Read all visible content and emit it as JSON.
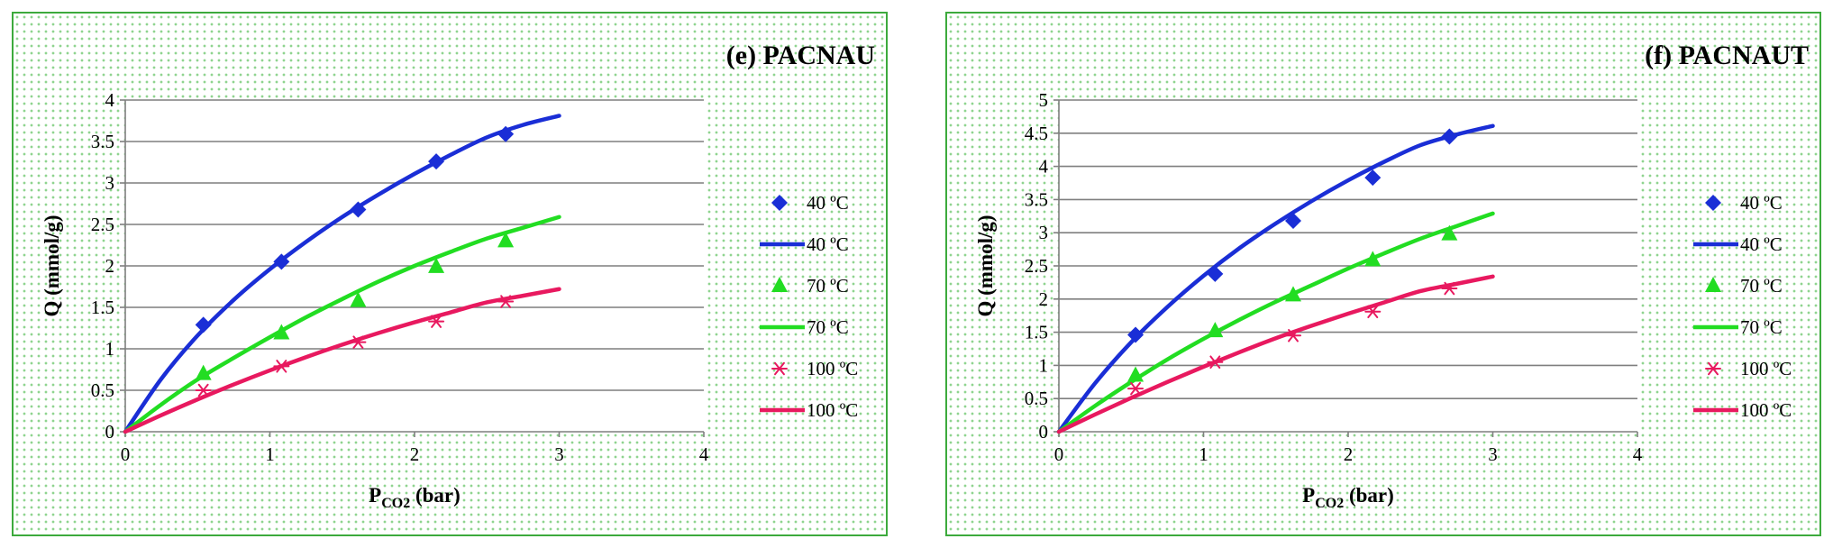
{
  "colors": {
    "c40": "#1a2ed6",
    "c70": "#22dd22",
    "c100": "#e8195f",
    "grid": "#7f7f7f",
    "axis": "#7f7f7f",
    "panel_border": "#3daa3d"
  },
  "chart_data": [
    {
      "type": "scatter",
      "title": "(e) PACNAU",
      "xlabel": {
        "main": "P",
        "sub": "CO2",
        "unit": " (bar)"
      },
      "ylabel": "Q (mmol/g)",
      "xlim": [
        0,
        4
      ],
      "ylim": [
        0,
        4
      ],
      "xticks": [
        0,
        1,
        2,
        3,
        4
      ],
      "yticks": [
        0,
        0.5,
        1,
        1.5,
        2,
        2.5,
        3,
        3.5,
        4
      ],
      "xtick_labels": [
        "0",
        "1",
        "2",
        "3",
        "4"
      ],
      "ytick_labels": [
        "0",
        "0.5",
        "1",
        "1.5",
        "2",
        "2.5",
        "3",
        "3.5",
        "4"
      ],
      "grid": true,
      "legend_position": "right",
      "series": [
        {
          "name": "40 ºC",
          "kind": "marker",
          "marker": "diamond",
          "color": "#1a2ed6",
          "x": [
            0.54,
            1.08,
            1.61,
            2.15,
            2.63
          ],
          "y": [
            1.29,
            2.05,
            2.68,
            3.26,
            3.59
          ]
        },
        {
          "name": "40 ºC",
          "kind": "line",
          "color": "#1a2ed6",
          "x": [
            0,
            0.25,
            0.5,
            0.75,
            1.0,
            1.25,
            1.5,
            1.75,
            2.0,
            2.25,
            2.5,
            2.75,
            3.0
          ],
          "y": [
            0,
            0.64,
            1.16,
            1.59,
            1.96,
            2.29,
            2.59,
            2.86,
            3.11,
            3.34,
            3.55,
            3.7,
            3.81
          ]
        },
        {
          "name": "70 ºC",
          "kind": "marker",
          "marker": "triangle",
          "color": "#22dd22",
          "x": [
            0.54,
            1.08,
            1.61,
            2.15,
            2.63
          ],
          "y": [
            0.7,
            1.19,
            1.58,
            1.99,
            2.3
          ]
        },
        {
          "name": "70 ºC",
          "kind": "line",
          "color": "#22dd22",
          "x": [
            0,
            0.25,
            0.5,
            0.75,
            1.0,
            1.25,
            1.5,
            1.75,
            2.0,
            2.25,
            2.5,
            2.75,
            3.0
          ],
          "y": [
            0,
            0.33,
            0.63,
            0.89,
            1.14,
            1.38,
            1.6,
            1.81,
            2.0,
            2.17,
            2.33,
            2.46,
            2.59
          ]
        },
        {
          "name": "100 ºC",
          "kind": "marker",
          "marker": "asterisk",
          "color": "#e8195f",
          "x": [
            0.54,
            1.08,
            1.61,
            2.15,
            2.63
          ],
          "y": [
            0.5,
            0.79,
            1.08,
            1.33,
            1.57
          ]
        },
        {
          "name": "100 ºC",
          "kind": "line",
          "color": "#e8195f",
          "x": [
            0,
            0.25,
            0.5,
            0.75,
            1.0,
            1.25,
            1.5,
            1.75,
            2.0,
            2.25,
            2.5,
            2.75,
            3.0
          ],
          "y": [
            0,
            0.2,
            0.39,
            0.57,
            0.74,
            0.9,
            1.05,
            1.19,
            1.32,
            1.44,
            1.56,
            1.64,
            1.72
          ]
        }
      ]
    },
    {
      "type": "scatter",
      "title": "(f) PACNAUT",
      "xlabel": {
        "main": "P",
        "sub": "CO2",
        "unit": " (bar)"
      },
      "ylabel": "Q (mmol/g)",
      "xlim": [
        0,
        4
      ],
      "ylim": [
        0,
        5
      ],
      "xticks": [
        0,
        1,
        2,
        3,
        4
      ],
      "yticks": [
        0,
        0.5,
        1,
        1.5,
        2,
        2.5,
        3,
        3.5,
        4,
        4.5,
        5
      ],
      "xtick_labels": [
        "0",
        "1",
        "2",
        "3",
        "4"
      ],
      "ytick_labels": [
        "0",
        "0.5",
        "1",
        "1.5",
        "2",
        "2.5",
        "3",
        "3.5",
        "4",
        "4.5",
        "5"
      ],
      "grid": true,
      "legend_position": "right",
      "series": [
        {
          "name": "40 ºC",
          "kind": "marker",
          "marker": "diamond",
          "color": "#1a2ed6",
          "x": [
            0.53,
            1.08,
            1.62,
            2.17,
            2.7
          ],
          "y": [
            1.46,
            2.38,
            3.18,
            3.83,
            4.45
          ]
        },
        {
          "name": "40 ºC",
          "kind": "line",
          "color": "#1a2ed6",
          "x": [
            0,
            0.25,
            0.5,
            0.75,
            1.0,
            1.25,
            1.5,
            1.75,
            2.0,
            2.25,
            2.5,
            2.75,
            3.0
          ],
          "y": [
            0,
            0.73,
            1.35,
            1.88,
            2.35,
            2.77,
            3.14,
            3.48,
            3.79,
            4.07,
            4.32,
            4.48,
            4.61
          ]
        },
        {
          "name": "70 ºC",
          "kind": "marker",
          "marker": "triangle",
          "color": "#22dd22",
          "x": [
            0.53,
            1.08,
            1.62,
            2.17,
            2.7
          ],
          "y": [
            0.85,
            1.52,
            2.06,
            2.59,
            2.98
          ]
        },
        {
          "name": "70 ºC",
          "kind": "line",
          "color": "#22dd22",
          "x": [
            0,
            0.25,
            0.5,
            0.75,
            1.0,
            1.25,
            1.5,
            1.75,
            2.0,
            2.25,
            2.5,
            2.75,
            3.0
          ],
          "y": [
            0,
            0.39,
            0.75,
            1.09,
            1.4,
            1.69,
            1.96,
            2.21,
            2.46,
            2.69,
            2.91,
            3.1,
            3.29
          ]
        },
        {
          "name": "100  ºC",
          "kind": "marker",
          "marker": "asterisk",
          "color": "#e8195f",
          "x": [
            0.53,
            1.08,
            1.62,
            2.17,
            2.7
          ],
          "y": [
            0.65,
            1.05,
            1.45,
            1.81,
            2.16
          ]
        },
        {
          "name": "100  ºC",
          "kind": "line",
          "color": "#e8195f",
          "x": [
            0,
            0.25,
            0.5,
            0.75,
            1.0,
            1.25,
            1.5,
            1.75,
            2.0,
            2.25,
            2.5,
            2.75,
            3.0
          ],
          "y": [
            0,
            0.26,
            0.51,
            0.75,
            0.98,
            1.2,
            1.41,
            1.6,
            1.78,
            1.95,
            2.12,
            2.23,
            2.34
          ]
        }
      ]
    }
  ]
}
